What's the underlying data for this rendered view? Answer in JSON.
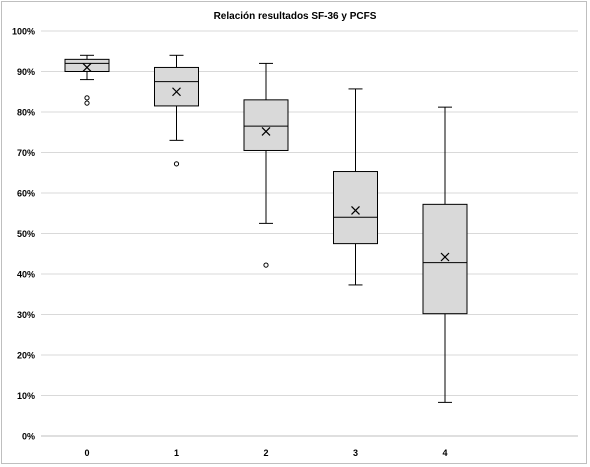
{
  "chart_data": {
    "type": "box",
    "title": "Relación resultados SF-36 y PCFS",
    "xlabel": "",
    "ylabel": "",
    "ylim": [
      0,
      100
    ],
    "y_ticks": [
      "0%",
      "10%",
      "20%",
      "30%",
      "40%",
      "50%",
      "60%",
      "70%",
      "80%",
      "90%",
      "100%"
    ],
    "grid": true,
    "legend": "none",
    "colors": {
      "box_fill": "#d9d9d9",
      "box_stroke": "#000000",
      "grid": "#d9d9d9",
      "axis": "#bfbfbf"
    },
    "categories": [
      "0",
      "1",
      "2",
      "3",
      "4"
    ],
    "boxes": [
      {
        "category": "0",
        "min": 88,
        "q1": 90,
        "median": 92,
        "q3": 93,
        "max": 94,
        "mean": 91,
        "outliers": [
          83.5,
          82.2
        ]
      },
      {
        "category": "1",
        "min": 73,
        "q1": 81.5,
        "median": 87.5,
        "q3": 91,
        "max": 94,
        "mean": 85,
        "outliers": [
          67.2
        ]
      },
      {
        "category": "2",
        "min": 52.5,
        "q1": 70.5,
        "median": 76.5,
        "q3": 83,
        "max": 92,
        "mean": 75.2,
        "outliers": [
          42.2
        ]
      },
      {
        "category": "3",
        "min": 37.3,
        "q1": 47.5,
        "median": 54,
        "q3": 65.3,
        "max": 85.7,
        "mean": 55.7,
        "outliers": []
      },
      {
        "category": "4",
        "min": 8.3,
        "q1": 30.2,
        "median": 42.8,
        "q3": 57.2,
        "max": 81.2,
        "mean": 44.2,
        "outliers": []
      }
    ]
  }
}
